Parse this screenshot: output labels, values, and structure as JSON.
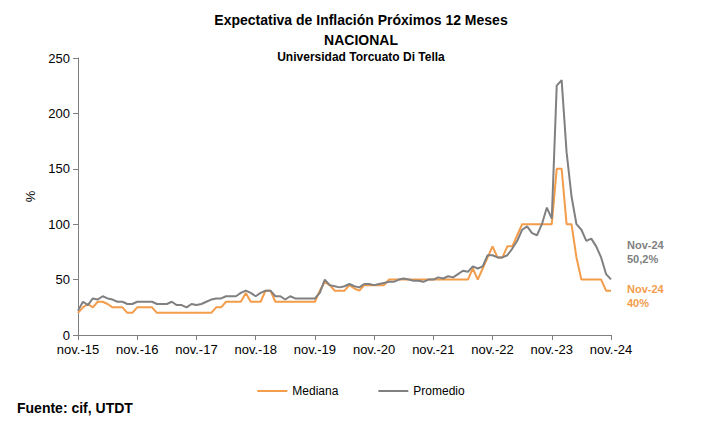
{
  "chart_data": {
    "type": "line",
    "title": "Expectativa de Inflación Próximos 12 Meses",
    "subtitle": [
      "NACIONAL",
      "Universidad Torcuato Di Tella"
    ],
    "y_label": "%",
    "source": "Fuente: cif, UTDT",
    "categories": [
      "nov.-15",
      null,
      null,
      null,
      null,
      null,
      null,
      null,
      null,
      null,
      null,
      null,
      "nov.-16",
      null,
      null,
      null,
      null,
      null,
      null,
      null,
      null,
      null,
      null,
      null,
      "nov.-17",
      null,
      null,
      null,
      null,
      null,
      null,
      null,
      null,
      null,
      null,
      null,
      "nov.-18",
      null,
      null,
      null,
      null,
      null,
      null,
      null,
      null,
      null,
      null,
      null,
      "nov.-19",
      null,
      null,
      null,
      null,
      null,
      null,
      null,
      null,
      null,
      null,
      null,
      "nov.-20",
      null,
      null,
      null,
      null,
      null,
      null,
      null,
      null,
      null,
      null,
      null,
      "nov.-21",
      null,
      null,
      null,
      null,
      null,
      null,
      null,
      null,
      null,
      null,
      null,
      "nov.-22",
      null,
      null,
      null,
      null,
      null,
      null,
      null,
      null,
      null,
      null,
      null,
      "nov.-23",
      null,
      null,
      null,
      null,
      null,
      null,
      null,
      null,
      null,
      null,
      null,
      "nov.-24"
    ],
    "series": [
      {
        "name": "Mediana",
        "color": "#f39c4a",
        "values": [
          20,
          25,
          28,
          25,
          30,
          30,
          28,
          25,
          25,
          25,
          20,
          20,
          25,
          25,
          25,
          25,
          20,
          20,
          20,
          20,
          20,
          20,
          20,
          20,
          20,
          20,
          20,
          20,
          25,
          25,
          30,
          30,
          30,
          30,
          38,
          30,
          30,
          30,
          40,
          40,
          30,
          30,
          30,
          30,
          30,
          30,
          30,
          30,
          30,
          40,
          48,
          45,
          40,
          40,
          40,
          45,
          42,
          40,
          45,
          45,
          45,
          45,
          45,
          50,
          50,
          50,
          50,
          50,
          50,
          50,
          50,
          50,
          50,
          50,
          50,
          50,
          50,
          50,
          50,
          50,
          60,
          50,
          60,
          70,
          80,
          70,
          70,
          80,
          80,
          90,
          100,
          100,
          100,
          100,
          100,
          100,
          100,
          150,
          150,
          100,
          100,
          70,
          50,
          50,
          50,
          50,
          50,
          40,
          40
        ]
      },
      {
        "name": "Promedio",
        "color": "#808080",
        "values": [
          22,
          30,
          27,
          33,
          32,
          35,
          33,
          32,
          30,
          30,
          28,
          28,
          30,
          30,
          30,
          30,
          28,
          28,
          28,
          30,
          27,
          27,
          25,
          28,
          27,
          28,
          30,
          32,
          33,
          33,
          35,
          35,
          35,
          38,
          40,
          38,
          35,
          38,
          40,
          40,
          35,
          35,
          32,
          35,
          33,
          33,
          33,
          33,
          33,
          38,
          50,
          45,
          44,
          43,
          44,
          46,
          44,
          43,
          46,
          46,
          45,
          46,
          47,
          48,
          48,
          50,
          51,
          50,
          49,
          49,
          48,
          50,
          50,
          52,
          51,
          53,
          52,
          55,
          58,
          57,
          62,
          60,
          62,
          72,
          72,
          70,
          70,
          72,
          78,
          85,
          95,
          98,
          92,
          90,
          100,
          115,
          105,
          225,
          230,
          165,
          125,
          100,
          95,
          85,
          87,
          80,
          70,
          55,
          50.2
        ]
      }
    ],
    "annotations": [
      {
        "text": [
          "Nov-24",
          "50,2%"
        ],
        "series": "Promedio"
      },
      {
        "text": [
          "Nov-24",
          "40%"
        ],
        "series": "Mediana"
      }
    ],
    "ylim": [
      0,
      250
    ],
    "yticks": [
      0,
      50,
      100,
      150,
      200,
      250
    ],
    "grid": false,
    "legend": "bottom"
  }
}
